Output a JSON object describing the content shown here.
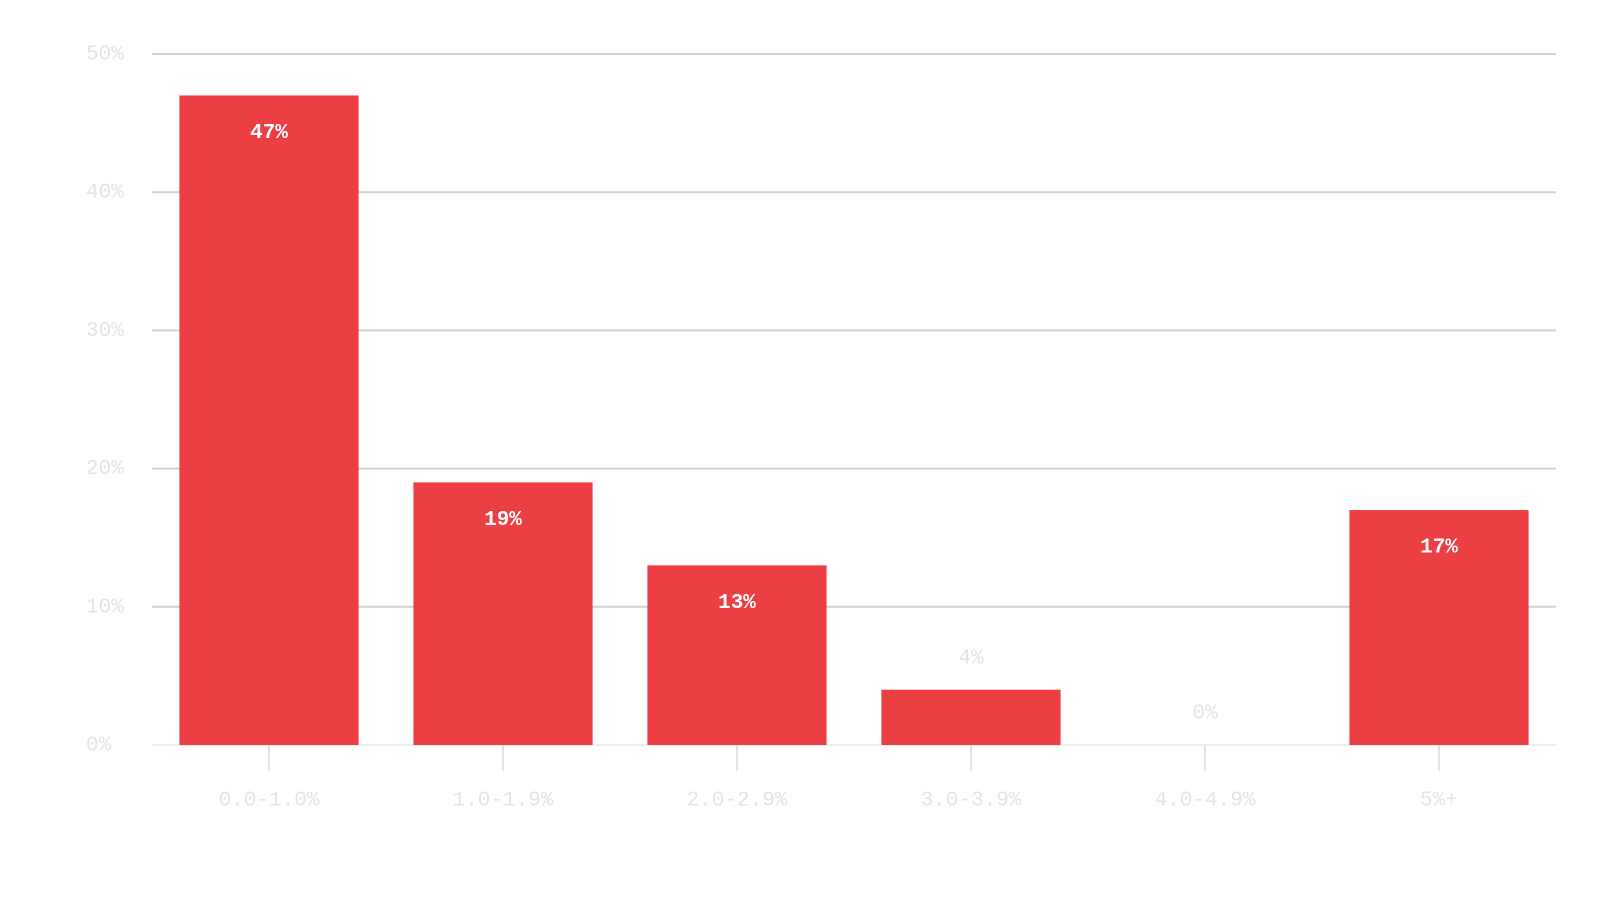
{
  "chart_data": {
    "type": "bar",
    "categories": [
      "0.0-1.0%",
      "1.0-1.9%",
      "2.0-2.9%",
      "3.0-3.9%",
      "4.0-4.9%",
      "5%+"
    ],
    "values": [
      47,
      19,
      13,
      4,
      0,
      17
    ],
    "value_labels": [
      "47%",
      "19%",
      "13%",
      "4%",
      "0%",
      "17%"
    ],
    "color": "#eb3f44",
    "ylim": [
      0,
      50
    ],
    "yticks": [
      {
        "value": 0,
        "label": "0%"
      },
      {
        "value": 10,
        "label": "10%"
      },
      {
        "value": 20,
        "label": "20%"
      },
      {
        "value": 30,
        "label": "30%"
      },
      {
        "value": 40,
        "label": "40%"
      },
      {
        "value": 50,
        "label": "50%"
      }
    ],
    "grid": true
  }
}
